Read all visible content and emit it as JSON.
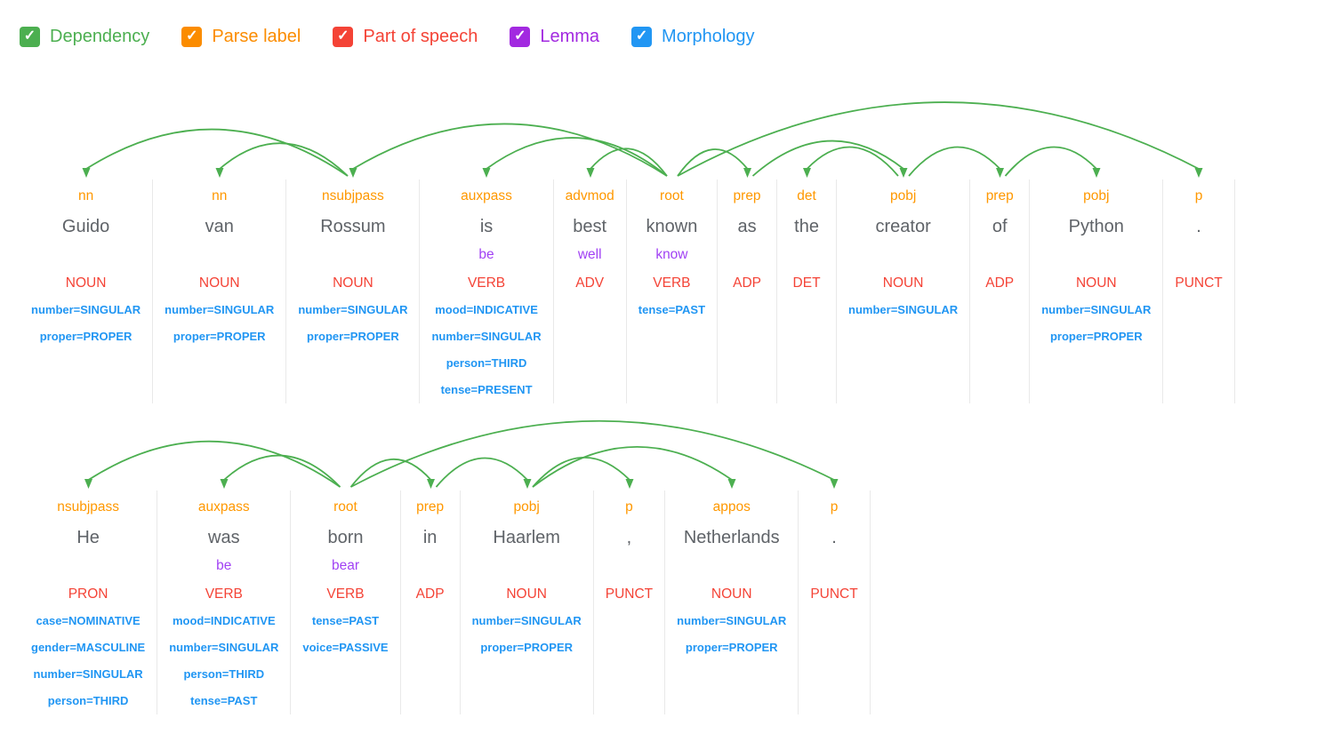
{
  "legend": {
    "items": [
      {
        "name": "dependency",
        "label": "Dependency",
        "color": "#4caf50",
        "checked": true
      },
      {
        "name": "parse-label",
        "label": "Parse label",
        "color": "#fb8c00",
        "checked": true
      },
      {
        "name": "part-of-speech",
        "label": "Part of speech",
        "color": "#f44336",
        "checked": true
      },
      {
        "name": "lemma",
        "label": "Lemma",
        "color": "#a229e0",
        "checked": true
      },
      {
        "name": "morphology",
        "label": "Morphology",
        "color": "#2196f3",
        "checked": true
      }
    ],
    "check_glyph": "✓"
  },
  "colors": {
    "arc": "#4caf50",
    "parse_label": "#ff9800",
    "word": "#5f6368",
    "lemma": "#a142f4",
    "pos": "#f44336",
    "morphology": "#2196f3",
    "separator": "#e9e9e9"
  },
  "sentences": [
    {
      "text": "Guido van Rossum is best known as the creator of Python .",
      "arc_area_height": 110,
      "tokens": [
        {
          "label": "nn",
          "word": "Guido",
          "lemma": "",
          "pos": "NOUN",
          "morph": [
            "number=SINGULAR",
            "proper=PROPER"
          ]
        },
        {
          "label": "nn",
          "word": "van",
          "lemma": "",
          "pos": "NOUN",
          "morph": [
            "number=SINGULAR",
            "proper=PROPER"
          ]
        },
        {
          "label": "nsubjpass",
          "word": "Rossum",
          "lemma": "",
          "pos": "NOUN",
          "morph": [
            "number=SINGULAR",
            "proper=PROPER"
          ]
        },
        {
          "label": "auxpass",
          "word": "is",
          "lemma": "be",
          "pos": "VERB",
          "morph": [
            "mood=INDICATIVE",
            "number=SINGULAR",
            "person=THIRD",
            "tense=PRESENT"
          ]
        },
        {
          "label": "advmod",
          "word": "best",
          "lemma": "well",
          "pos": "ADV",
          "morph": []
        },
        {
          "label": "root",
          "word": "known",
          "lemma": "know",
          "pos": "VERB",
          "morph": [
            "tense=PAST"
          ]
        },
        {
          "label": "prep",
          "word": "as",
          "lemma": "",
          "pos": "ADP",
          "morph": []
        },
        {
          "label": "det",
          "word": "the",
          "lemma": "",
          "pos": "DET",
          "morph": []
        },
        {
          "label": "pobj",
          "word": "creator",
          "lemma": "",
          "pos": "NOUN",
          "morph": [
            "number=SINGULAR"
          ]
        },
        {
          "label": "prep",
          "word": "of",
          "lemma": "",
          "pos": "ADP",
          "morph": []
        },
        {
          "label": "pobj",
          "word": "Python",
          "lemma": "",
          "pos": "NOUN",
          "morph": [
            "number=SINGULAR",
            "proper=PROPER"
          ]
        },
        {
          "label": "p",
          "word": ".",
          "lemma": "",
          "pos": "PUNCT",
          "morph": []
        }
      ],
      "edges": [
        {
          "head": 2,
          "dep": 0,
          "label": "nn"
        },
        {
          "head": 2,
          "dep": 1,
          "label": "nn"
        },
        {
          "head": 5,
          "dep": 2,
          "label": "nsubjpass"
        },
        {
          "head": 5,
          "dep": 3,
          "label": "auxpass"
        },
        {
          "head": 5,
          "dep": 4,
          "label": "advmod"
        },
        {
          "head": 5,
          "dep": 6,
          "label": "prep"
        },
        {
          "head": 6,
          "dep": 8,
          "label": "pobj"
        },
        {
          "head": 8,
          "dep": 7,
          "label": "det"
        },
        {
          "head": 8,
          "dep": 9,
          "label": "prep"
        },
        {
          "head": 9,
          "dep": 10,
          "label": "pobj"
        },
        {
          "head": 5,
          "dep": 11,
          "label": "p"
        }
      ]
    },
    {
      "text": "He was born in Haarlem , Netherlands .",
      "arc_area_height": 92,
      "tokens": [
        {
          "label": "nsubjpass",
          "word": "He",
          "lemma": "",
          "pos": "PRON",
          "morph": [
            "case=NOMINATIVE",
            "gender=MASCULINE",
            "number=SINGULAR",
            "person=THIRD"
          ]
        },
        {
          "label": "auxpass",
          "word": "was",
          "lemma": "be",
          "pos": "VERB",
          "morph": [
            "mood=INDICATIVE",
            "number=SINGULAR",
            "person=THIRD",
            "tense=PAST"
          ]
        },
        {
          "label": "root",
          "word": "born",
          "lemma": "bear",
          "pos": "VERB",
          "morph": [
            "tense=PAST",
            "voice=PASSIVE"
          ]
        },
        {
          "label": "prep",
          "word": "in",
          "lemma": "",
          "pos": "ADP",
          "morph": []
        },
        {
          "label": "pobj",
          "word": "Haarlem",
          "lemma": "",
          "pos": "NOUN",
          "morph": [
            "number=SINGULAR",
            "proper=PROPER"
          ]
        },
        {
          "label": "p",
          "word": ",",
          "lemma": "",
          "pos": "PUNCT",
          "morph": []
        },
        {
          "label": "appos",
          "word": "Netherlands",
          "lemma": "",
          "pos": "NOUN",
          "morph": [
            "number=SINGULAR",
            "proper=PROPER"
          ]
        },
        {
          "label": "p",
          "word": ".",
          "lemma": "",
          "pos": "PUNCT",
          "morph": []
        }
      ],
      "edges": [
        {
          "head": 2,
          "dep": 0,
          "label": "nsubjpass"
        },
        {
          "head": 2,
          "dep": 1,
          "label": "auxpass"
        },
        {
          "head": 2,
          "dep": 3,
          "label": "prep"
        },
        {
          "head": 3,
          "dep": 4,
          "label": "pobj"
        },
        {
          "head": 4,
          "dep": 5,
          "label": "p"
        },
        {
          "head": 4,
          "dep": 6,
          "label": "appos"
        },
        {
          "head": 2,
          "dep": 7,
          "label": "p"
        }
      ]
    }
  ]
}
